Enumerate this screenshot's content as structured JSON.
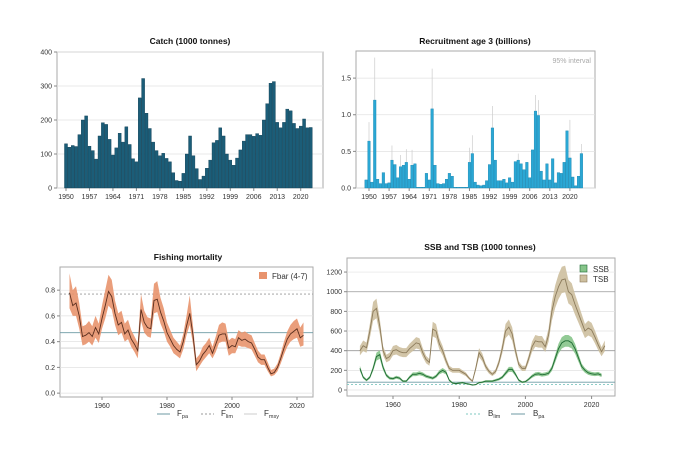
{
  "colors": {
    "catch_bar": "#1b5d78",
    "recruit_bar": "#2aa7d4",
    "f_band": "#e8936d",
    "f_line": "#5a2e1e",
    "ssb_band": "#86c489",
    "ssb_line": "#1f6b34",
    "tsb_band": "#cdbf9f",
    "tsb_line": "#8c7b5b",
    "ref_pa": "#6c9aa3",
    "ref_lim": "#7fc8c0"
  },
  "chart_data": [
    {
      "type": "bar",
      "title": "Catch (1000 tonnes)",
      "ylim": [
        0,
        400
      ],
      "yticks": [
        "0",
        "100",
        "200",
        "300",
        "400"
      ],
      "xticks": [
        "1950",
        "1957",
        "1964",
        "1971",
        "1978",
        "1985",
        "1992",
        "1999",
        "2006",
        "2013",
        "2020"
      ],
      "start_year": 1950,
      "values": [
        130,
        120,
        125,
        122,
        157,
        200,
        212,
        123,
        110,
        85,
        153,
        192,
        187,
        143,
        97,
        118,
        161,
        135,
        180,
        128,
        86,
        77,
        265,
        322,
        220,
        175,
        135,
        110,
        95,
        102,
        87,
        77,
        45,
        22,
        20,
        43,
        100,
        153,
        95,
        57,
        25,
        35,
        58,
        82,
        133,
        140,
        177,
        153,
        100,
        82,
        67,
        88,
        112,
        138,
        157,
        157,
        152,
        160,
        155,
        200,
        248,
        308,
        313,
        193,
        177,
        193,
        232,
        227,
        190,
        175,
        182,
        203,
        177,
        178
      ]
    },
    {
      "type": "bar",
      "title": "Recruitment age 3 (billions)",
      "annotation": "95% interval",
      "ylim": [
        0,
        1.87
      ],
      "yticks": [
        "0.0",
        "0.5",
        "1.0",
        "1.5"
      ],
      "xticks": [
        "1950",
        "1957",
        "1964",
        "1971",
        "1978",
        "1985",
        "1992",
        "1999",
        "2006",
        "2013",
        "2020"
      ],
      "start_year": 1949,
      "values": [
        0.11,
        0.64,
        0.08,
        1.2,
        0.12,
        0.06,
        0.21,
        0.06,
        0.07,
        0.38,
        0.32,
        0.14,
        0.29,
        0.31,
        0.35,
        0.12,
        0.31,
        0.33,
        0.01,
        0.01,
        0.01,
        0.2,
        0.11,
        1.08,
        0.31,
        0.06,
        0.05,
        0.06,
        0.12,
        0.2,
        0.16,
        0.01,
        0.01,
        0.01,
        0.01,
        0.01,
        0.35,
        0.47,
        0.08,
        0.04,
        0.03,
        0.04,
        0.1,
        0.32,
        0.82,
        0.38,
        0.1,
        0.1,
        0.12,
        0.07,
        0.14,
        0.08,
        0.36,
        0.38,
        0.33,
        0.25,
        0.35,
        0.14,
        0.52,
        1.05,
        0.99,
        0.23,
        0.11,
        0.33,
        0.11,
        0.4,
        0.07,
        0.21,
        0.2,
        0.35,
        0.78,
        0.41,
        0.15,
        0.03,
        0.16,
        0.47
      ],
      "upper_95": {
        "1950": 0.9,
        "1952": 1.78,
        "1958": 0.58,
        "1961": 0.45,
        "1963": 0.53,
        "1965": 0.52,
        "1972": 1.63,
        "1985": 0.55,
        "1986": 0.72,
        "1993": 1.12,
        "2002": 0.47,
        "2008": 1.27,
        "2009": 1.2,
        "2020": 0.93,
        "2024": 0.6
      }
    },
    {
      "type": "area",
      "title": "Fishing mortality",
      "ylim": [
        -0.03,
        0.98
      ],
      "yticks": [
        "0.0",
        "0.2",
        "0.4",
        "0.6",
        "0.8"
      ],
      "xticks": [
        "1960",
        "1980",
        "2000",
        "2020"
      ],
      "start_year": 1950,
      "series": [
        {
          "name": "Fbar (4-7)",
          "values": [
            0.78,
            0.68,
            0.7,
            0.6,
            0.44,
            0.45,
            0.47,
            0.44,
            0.51,
            0.46,
            0.58,
            0.68,
            0.79,
            0.75,
            0.62,
            0.53,
            0.55,
            0.46,
            0.49,
            0.42,
            0.38,
            0.33,
            0.65,
            0.55,
            0.51,
            0.5,
            0.72,
            0.73,
            0.63,
            0.56,
            0.47,
            0.42,
            0.37,
            0.34,
            0.32,
            0.4,
            0.52,
            0.62,
            0.45,
            0.22,
            0.25,
            0.3,
            0.33,
            0.37,
            0.31,
            0.38,
            0.45,
            0.46,
            0.46,
            0.35,
            0.37,
            0.36,
            0.43,
            0.41,
            0.42,
            0.4,
            0.39,
            0.34,
            0.28,
            0.26,
            0.26,
            0.2,
            0.15,
            0.16,
            0.2,
            0.27,
            0.35,
            0.42,
            0.46,
            0.48,
            0.5,
            0.43,
            0.45
          ],
          "low": [
            0.66,
            0.6,
            0.6,
            0.5,
            0.37,
            0.38,
            0.4,
            0.37,
            0.43,
            0.39,
            0.5,
            0.58,
            0.68,
            0.65,
            0.53,
            0.45,
            0.47,
            0.4,
            0.42,
            0.36,
            0.32,
            0.27,
            0.56,
            0.47,
            0.44,
            0.43,
            0.62,
            0.63,
            0.54,
            0.48,
            0.4,
            0.36,
            0.31,
            0.29,
            0.27,
            0.34,
            0.45,
            0.53,
            0.38,
            0.17,
            0.21,
            0.25,
            0.28,
            0.31,
            0.27,
            0.32,
            0.39,
            0.4,
            0.4,
            0.29,
            0.31,
            0.31,
            0.37,
            0.36,
            0.36,
            0.35,
            0.34,
            0.29,
            0.24,
            0.22,
            0.22,
            0.17,
            0.13,
            0.14,
            0.17,
            0.23,
            0.3,
            0.36,
            0.4,
            0.42,
            0.43,
            0.36,
            0.37
          ],
          "high": [
            0.93,
            0.8,
            0.83,
            0.7,
            0.52,
            0.53,
            0.56,
            0.52,
            0.6,
            0.54,
            0.68,
            0.8,
            0.92,
            0.88,
            0.72,
            0.62,
            0.64,
            0.54,
            0.57,
            0.49,
            0.44,
            0.39,
            0.77,
            0.64,
            0.59,
            0.58,
            0.85,
            0.87,
            0.74,
            0.66,
            0.55,
            0.49,
            0.43,
            0.4,
            0.37,
            0.46,
            0.6,
            0.76,
            0.52,
            0.27,
            0.3,
            0.36,
            0.39,
            0.43,
            0.36,
            0.44,
            0.53,
            0.55,
            0.54,
            0.41,
            0.43,
            0.42,
            0.49,
            0.47,
            0.48,
            0.46,
            0.45,
            0.39,
            0.33,
            0.3,
            0.3,
            0.24,
            0.18,
            0.19,
            0.23,
            0.31,
            0.4,
            0.48,
            0.53,
            0.56,
            0.58,
            0.51,
            0.55
          ]
        }
      ],
      "reference_lines": [
        {
          "name": "F",
          "sub": "pa",
          "value": 0.47,
          "style": "solid"
        },
        {
          "name": "F",
          "sub": "lim",
          "value": 0.77,
          "style": "dashed"
        },
        {
          "name": "F",
          "sub": "msy",
          "value": 0.35,
          "style": "light"
        }
      ]
    },
    {
      "type": "area",
      "title": "SSB and TSB (1000 tonnes)",
      "ylim": [
        -61,
        1343
      ],
      "yticks": [
        "0",
        "200",
        "400",
        "600",
        "800",
        "1000",
        "1200"
      ],
      "xticks": [
        "1960",
        "1980",
        "2000",
        "2020"
      ],
      "start_year": 1950,
      "series": [
        {
          "name": "TSB",
          "values": [
            400,
            450,
            430,
            600,
            800,
            830,
            650,
            400,
            320,
            340,
            400,
            410,
            390,
            380,
            380,
            420,
            450,
            480,
            470,
            380,
            310,
            280,
            620,
            600,
            470,
            400,
            300,
            220,
            200,
            200,
            200,
            180,
            160,
            120,
            90,
            220,
            380,
            330,
            240,
            190,
            160,
            190,
            280,
            420,
            600,
            640,
            570,
            400,
            260,
            220,
            220,
            320,
            440,
            500,
            490,
            490,
            440,
            560,
            800,
            950,
            1050,
            1120,
            1130,
            1000,
            970,
            870,
            780,
            690,
            600,
            630,
            610,
            540,
            460,
            390,
            450
          ]
        },
        {
          "name": "SSB",
          "values": [
            220,
            130,
            100,
            130,
            220,
            340,
            360,
            230,
            150,
            120,
            115,
            130,
            120,
            90,
            90,
            130,
            160,
            160,
            170,
            160,
            140,
            130,
            120,
            140,
            180,
            200,
            180,
            100,
            70,
            65,
            70,
            75,
            65,
            60,
            50,
            55,
            75,
            80,
            90,
            90,
            90,
            100,
            110,
            130,
            170,
            210,
            210,
            160,
            100,
            80,
            85,
            110,
            140,
            160,
            165,
            155,
            160,
            170,
            220,
            320,
            420,
            480,
            500,
            500,
            480,
            420,
            330,
            240,
            200,
            175,
            165,
            160,
            165,
            150
          ]
        }
      ],
      "reference_lines": [
        {
          "name": "B",
          "sub": "lim",
          "value": 55,
          "style": "dashed"
        },
        {
          "name": "B",
          "sub": "pa",
          "value": 80,
          "style": "solid"
        }
      ]
    }
  ]
}
